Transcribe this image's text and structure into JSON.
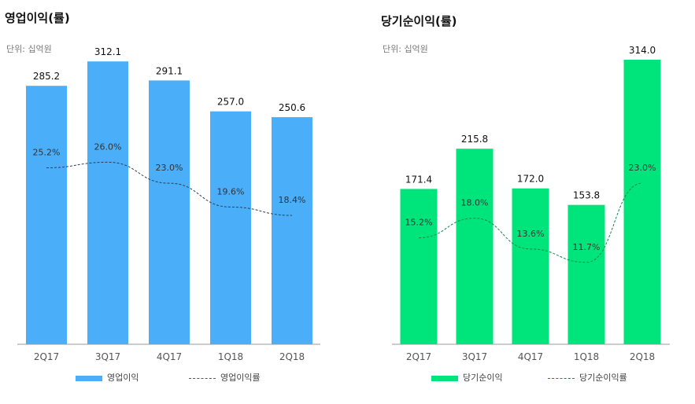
{
  "colors": {
    "left_bar": "#4aaef9",
    "right_bar": "#00e47c",
    "left_line": "#2e3d55",
    "right_line": "#0f8a4a"
  },
  "chart_data": [
    {
      "type": "bar",
      "title": "영업이익(률)",
      "unit_label": "단위: 십억원",
      "categories": [
        "2Q17",
        "3Q17",
        "4Q17",
        "1Q18",
        "2Q18"
      ],
      "series": [
        {
          "name": "영업이익",
          "values": [
            285.2,
            312.1,
            291.1,
            257.0,
            250.6
          ],
          "labels": [
            "285.2",
            "312.1",
            "291.1",
            "257.0",
            "250.6"
          ],
          "kind": "bar"
        },
        {
          "name": "영업이익률",
          "values": [
            25.2,
            26.0,
            23.0,
            19.6,
            18.4
          ],
          "labels": [
            "25.2%",
            "26.0%",
            "23.0%",
            "19.6%",
            "18.4%"
          ],
          "kind": "line",
          "style": "dashed"
        }
      ],
      "ylim": [
        0,
        340
      ],
      "y2lim": [
        0,
        44
      ],
      "grid": false,
      "legend": "bottom"
    },
    {
      "type": "bar",
      "title": "당기순이익(률)",
      "unit_label": "단위: 십억원",
      "categories": [
        "2Q17",
        "3Q17",
        "4Q17",
        "1Q18",
        "2Q18"
      ],
      "series": [
        {
          "name": "당기순이익",
          "values": [
            171.4,
            215.8,
            172.0,
            153.8,
            314.0
          ],
          "labels": [
            "171.4",
            "215.8",
            "172.0",
            "153.8",
            "314.0"
          ],
          "kind": "bar"
        },
        {
          "name": "당기순이익률",
          "values": [
            15.2,
            18.0,
            13.6,
            11.7,
            23.0
          ],
          "labels": [
            "15.2%",
            "18.0%",
            "13.6%",
            "11.7%",
            "23.0%"
          ],
          "kind": "line",
          "style": "dashed"
        }
      ],
      "ylim": [
        0,
        340
      ],
      "y2lim": [
        0,
        44
      ],
      "grid": false,
      "legend": "bottom"
    }
  ]
}
